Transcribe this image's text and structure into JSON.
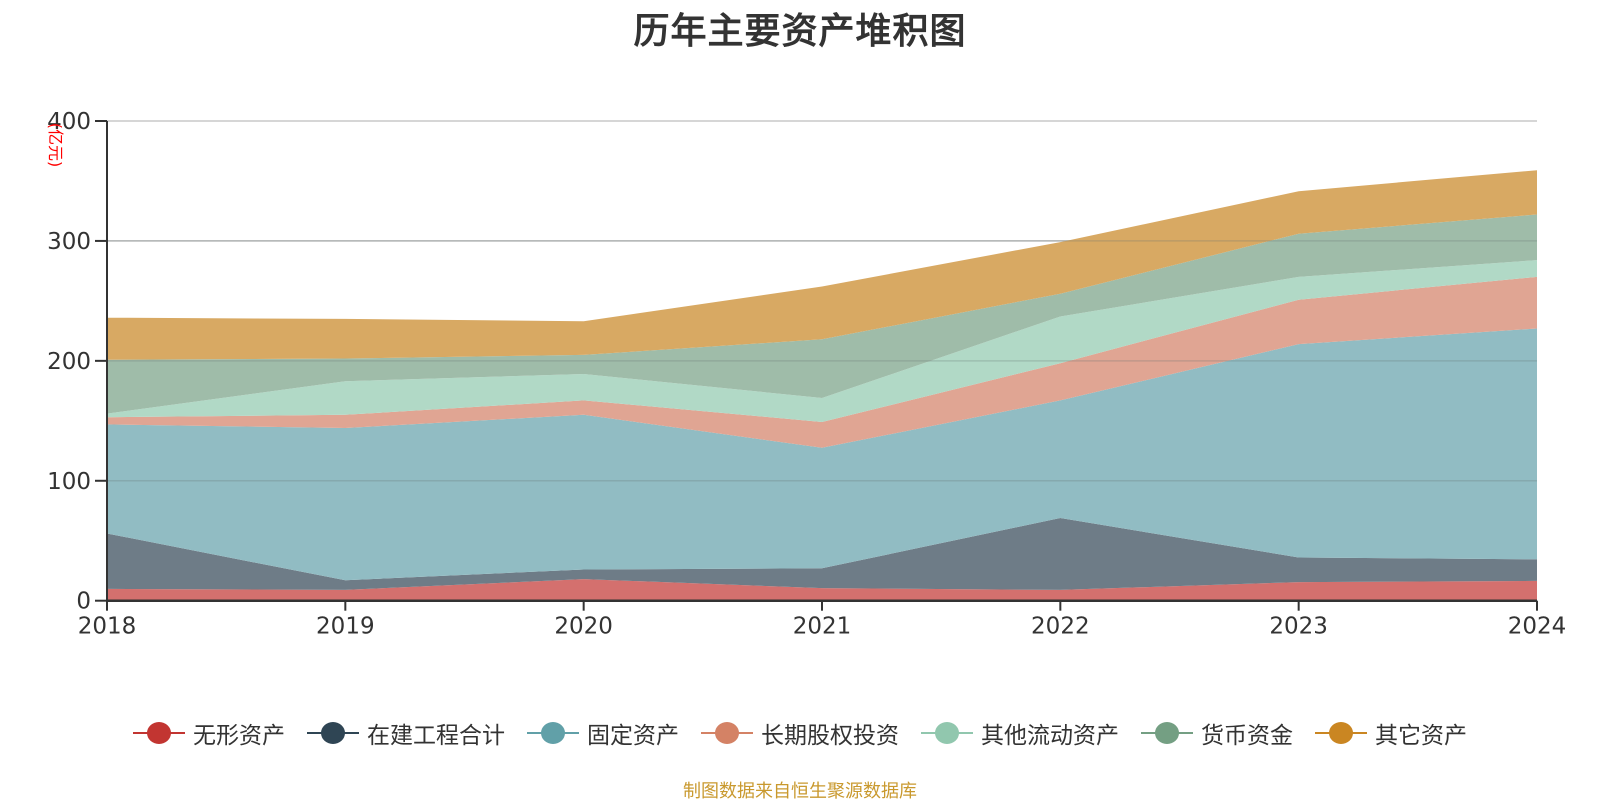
{
  "title": "历年主要资产堆积图",
  "footer": "制图数据来自恒生聚源数据库",
  "chart_data": {
    "type": "area",
    "stacked": true,
    "title": "历年主要资产堆积图",
    "xlabel": "",
    "ylabel": "(亿元)",
    "ylim": [
      0,
      400
    ],
    "yticks": [
      0,
      100,
      200,
      300,
      400
    ],
    "grid": true,
    "legend_position": "bottom",
    "categories": [
      "2018",
      "2019",
      "2020",
      "2021",
      "2022",
      "2023",
      "2024"
    ],
    "series": [
      {
        "name": "无形资产",
        "color": "#c23531",
        "fill": "#d4706e",
        "values": [
          9.8,
          9,
          18,
          10.5,
          9,
          15.5,
          16.5
        ]
      },
      {
        "name": "在建工程合计",
        "color": "#2f4554",
        "fill": "#6e7c87",
        "values": [
          46.2,
          8,
          8,
          16.5,
          60,
          20.5,
          18
        ]
      },
      {
        "name": "固定资产",
        "color": "#61a0a8",
        "fill": "#91bcc3",
        "values": [
          91,
          127,
          129,
          100.5,
          98,
          178,
          192.5
        ]
      },
      {
        "name": "长期股权投资",
        "color": "#d48265",
        "fill": "#e0a593",
        "values": [
          6,
          11,
          12,
          21.5,
          31,
          37,
          43
        ]
      },
      {
        "name": "其他流动资产",
        "color": "#91c7ae",
        "fill": "#b1d9c6",
        "values": [
          3,
          28,
          22,
          20,
          39,
          19,
          14
        ]
      },
      {
        "name": "货币资金",
        "color": "#749f83",
        "fill": "#9fbca9",
        "values": [
          45,
          19,
          16,
          49,
          19,
          36,
          38
        ]
      },
      {
        "name": "其它资产",
        "color": "#ca8622",
        "fill": "#d8a963",
        "values": [
          35,
          33,
          28,
          44,
          43,
          35.5,
          37
        ]
      }
    ]
  }
}
